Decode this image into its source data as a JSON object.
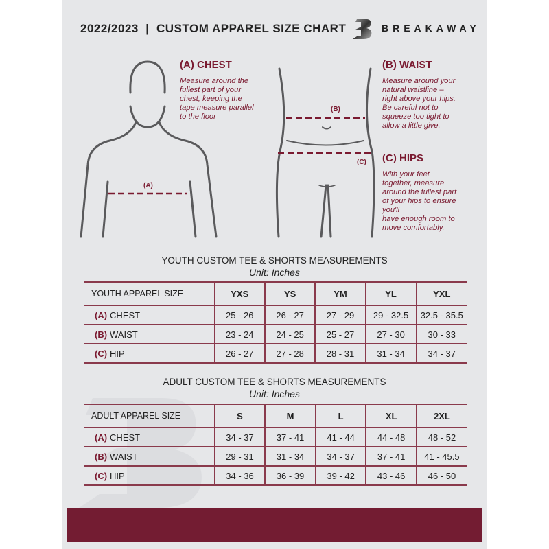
{
  "header": {
    "title": "2022/2023  |  CUSTOM APPAREL SIZE CHART",
    "brand": "BREAKAWAY",
    "logo_letter": "B"
  },
  "measures": {
    "chest": {
      "heading": "(A) CHEST",
      "text": [
        "Measure around the",
        "fullest part of your",
        "chest, keeping the",
        "tape measure parallel",
        "to the floor"
      ],
      "marker": "(A)"
    },
    "waist": {
      "heading": "(B) WAIST",
      "text": [
        "Measure around your",
        "natural waistline –",
        "right above your hips.",
        "Be careful not to",
        "squeeze too tight to",
        "allow a little give."
      ],
      "marker": "(B)"
    },
    "hips": {
      "heading": "(C) HIPS",
      "text": [
        "With your feet",
        "together, measure",
        "around the fullest part",
        "of your hips to ensure",
        "you'll",
        "have enough room to",
        "move comfortably."
      ],
      "marker": "(C)"
    }
  },
  "youth": {
    "title": "YOUTH CUSTOM TEE & SHORTS MEASUREMENTS",
    "unit": "Unit: Inches",
    "size_label": "YOUTH APPAREL SIZE",
    "sizes": [
      "YXS",
      "YS",
      "YM",
      "YL",
      "YXL"
    ],
    "rows": [
      {
        "code": "(A)",
        "name": "CHEST",
        "values": [
          "25 - 26",
          "26 - 27",
          "27 - 29",
          "29 - 32.5",
          "32.5 - 35.5"
        ]
      },
      {
        "code": "(B)",
        "name": "WAIST",
        "values": [
          "23 - 24",
          "24 - 25",
          "25 - 27",
          "27 - 30",
          "30 - 33"
        ]
      },
      {
        "code": "(C)",
        "name": "HIP",
        "values": [
          "26 - 27",
          "27 - 28",
          "28 - 31",
          "31 - 34",
          "34 - 37"
        ]
      }
    ]
  },
  "adult": {
    "title": "ADULT CUSTOM TEE & SHORTS MEASUREMENTS",
    "unit": "Unit: Inches",
    "size_label": "ADULT APPAREL SIZE",
    "sizes": [
      "S",
      "M",
      "L",
      "XL",
      "2XL"
    ],
    "rows": [
      {
        "code": "(A)",
        "name": "CHEST",
        "values": [
          "34 - 37",
          "37 - 41",
          "41 - 44",
          "44 - 48",
          "48 - 52"
        ]
      },
      {
        "code": "(B)",
        "name": "WAIST",
        "values": [
          "29 - 31",
          "31 - 34",
          "34 - 37",
          "37 - 41",
          "41 - 45.5"
        ]
      },
      {
        "code": "(C)",
        "name": "HIP",
        "values": [
          "34 - 36",
          "36 - 39",
          "39 - 42",
          "43 - 46",
          "46 - 50"
        ]
      }
    ]
  },
  "colors": {
    "accent": "#731c32",
    "background": "#e6e7e9",
    "figure": "#5a5a5c"
  }
}
